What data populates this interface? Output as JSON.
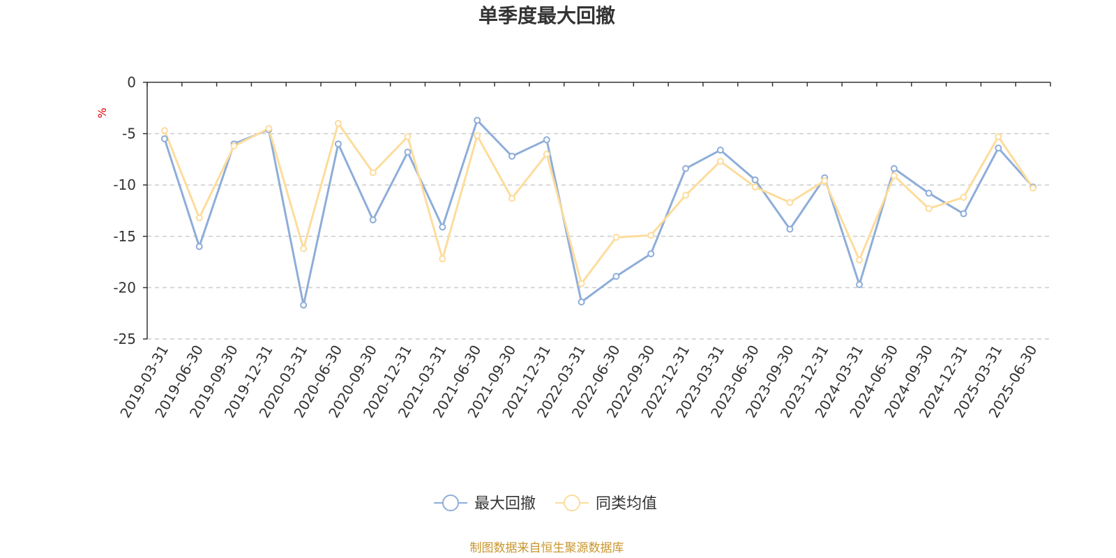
{
  "chart_data": {
    "type": "line",
    "title": "单季度最大回撤",
    "ylabel": "%",
    "ylim": [
      -25,
      0
    ],
    "yticks": [
      "0",
      "-5",
      "-10",
      "-15",
      "-20",
      "-25"
    ],
    "grid": "horizontal dashed",
    "legend_position": "bottom-center",
    "categories": [
      "2019-03-31",
      "2019-06-30",
      "2019-09-30",
      "2019-12-31",
      "2020-03-31",
      "2020-06-30",
      "2020-09-30",
      "2020-12-31",
      "2021-03-31",
      "2021-06-30",
      "2021-09-30",
      "2021-12-31",
      "2022-03-31",
      "2022-06-30",
      "2022-09-30",
      "2022-12-31",
      "2023-03-31",
      "2023-06-30",
      "2023-09-30",
      "2023-12-31",
      "2024-03-31",
      "2024-06-30",
      "2024-09-30",
      "2024-12-31",
      "2025-03-31",
      "2025-06-30"
    ],
    "series": [
      {
        "name": "最大回撤",
        "color": "#8eadd9",
        "values": [
          -5.5,
          -16.0,
          -6.0,
          -4.6,
          -21.7,
          -6.0,
          -13.4,
          -6.8,
          -14.1,
          -3.7,
          -7.2,
          -5.6,
          -21.4,
          -18.9,
          -16.7,
          -8.4,
          -6.6,
          -9.5,
          -14.3,
          -9.3,
          -19.7,
          -8.4,
          -10.8,
          -12.8,
          -6.4,
          -10.2
        ]
      },
      {
        "name": "同类均值",
        "color": "#fddc9c",
        "values": [
          -4.7,
          -13.2,
          -6.2,
          -4.5,
          -16.2,
          -4.0,
          -8.8,
          -5.3,
          -17.2,
          -5.2,
          -11.3,
          -7.0,
          -19.6,
          -15.1,
          -14.9,
          -11.0,
          -7.7,
          -10.2,
          -11.7,
          -9.6,
          -17.3,
          -9.1,
          -12.3,
          -11.2,
          -5.3,
          -10.3
        ]
      }
    ]
  },
  "footer": "制图数据来自恒生聚源数据库"
}
